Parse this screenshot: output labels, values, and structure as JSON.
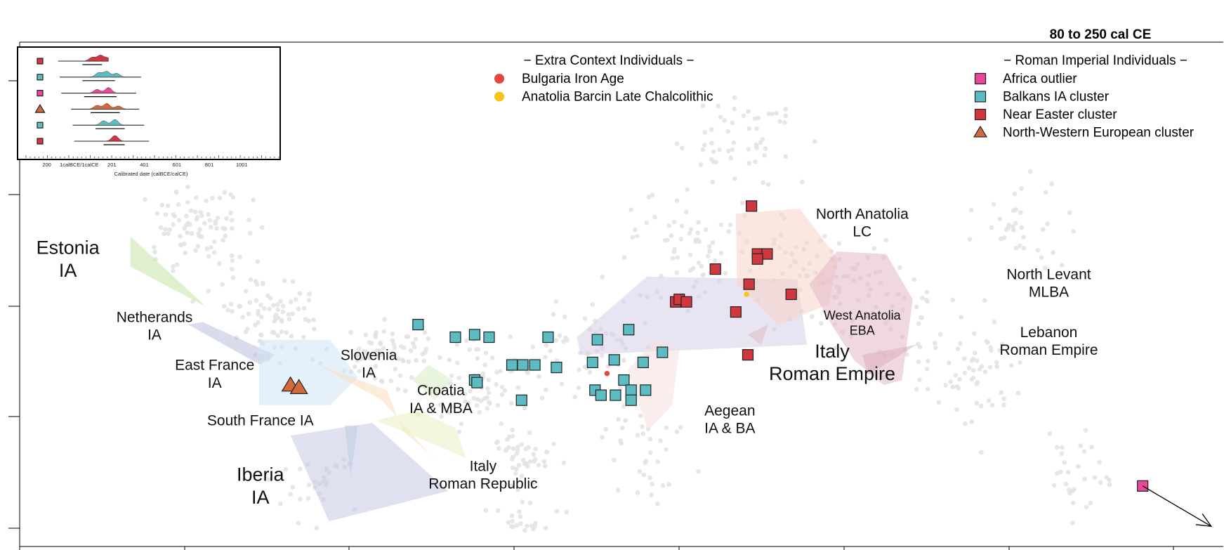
{
  "chart_data": {
    "type": "scatter",
    "title": "80 to 250 cal CE",
    "xlim": [
      0,
      1000
    ],
    "ylim": [
      0,
      100
    ],
    "background_color": "#e3e3e3",
    "legends": {
      "context": {
        "title": "Extra Context Individuals",
        "entries": [
          {
            "label": "Bulgaria Iron Age",
            "shape": "dot",
            "color": "#e8453c"
          },
          {
            "label": "Anatolia Barcin Late Chalcolithic",
            "shape": "dot",
            "color": "#f5c518"
          }
        ]
      },
      "roman": {
        "title": "Roman Imperial Individuals",
        "entries": [
          {
            "label": "Africa outlier",
            "shape": "square",
            "color": "#e8489a"
          },
          {
            "label": "Balkans IA cluster",
            "shape": "square",
            "color": "#5bbcc4"
          },
          {
            "label": "Near Easter cluster",
            "shape": "square",
            "color": "#d1373f"
          },
          {
            "label": "North-Western European cluster",
            "shape": "triangle",
            "color": "#d26a3e"
          }
        ]
      }
    },
    "regions": [
      {
        "name": "estonia",
        "color": "#c7e3a8",
        "points": [
          [
            92,
            61.5
          ],
          [
            155,
            47.5
          ],
          [
            92,
            55.5
          ]
        ]
      },
      {
        "name": "netherlands",
        "color": "#b9bfdd",
        "points": [
          [
            152,
            44.5
          ],
          [
            212,
            38
          ],
          [
            200,
            36
          ],
          [
            140,
            44
          ]
        ]
      },
      {
        "name": "east-france",
        "color": "#cfe6f6",
        "points": [
          [
            199,
            41
          ],
          [
            258,
            41
          ],
          [
            281,
            33.5
          ],
          [
            258,
            28
          ],
          [
            199,
            28
          ]
        ]
      },
      {
        "name": "south-france",
        "color": "#b0d2d8",
        "points": [
          [
            270,
            24
          ],
          [
            281,
            24
          ],
          [
            275,
            14
          ]
        ]
      },
      {
        "name": "iberia",
        "color": "#c4c8e3",
        "points": [
          [
            225,
            22
          ],
          [
            293,
            24.5
          ],
          [
            356,
            11
          ],
          [
            257,
            5
          ]
        ]
      },
      {
        "name": "slovenia-croatia",
        "color": "#fadcbc",
        "points": [
          [
            248,
            36
          ],
          [
            301,
            29
          ],
          [
            338,
            19
          ],
          [
            347,
            17
          ],
          [
            318,
            23
          ],
          [
            305,
            31
          ]
        ]
      },
      {
        "name": "croatia-green",
        "color": "#d9ecc2",
        "points": [
          [
            326,
            33
          ],
          [
            340,
            36
          ],
          [
            360,
            33
          ],
          [
            345,
            29
          ]
        ]
      },
      {
        "name": "italy-republic",
        "color": "#ebf0c2",
        "points": [
          [
            296,
            25
          ],
          [
            357,
            19
          ],
          [
            371,
            17.5
          ],
          [
            362,
            23.5
          ],
          [
            330,
            27
          ]
        ]
      },
      {
        "name": "italy-roman-empire",
        "color": "#d6cde6",
        "points": [
          [
            463,
            41.5
          ],
          [
            521,
            53.5
          ],
          [
            646,
            53
          ],
          [
            654,
            40
          ],
          [
            466,
            38
          ]
        ]
      },
      {
        "name": "aegean",
        "color": "#f6dede",
        "points": [
          [
            505,
            35
          ],
          [
            528,
            41
          ],
          [
            548,
            39
          ],
          [
            542,
            28
          ],
          [
            522,
            23
          ]
        ]
      },
      {
        "name": "north-anatolia",
        "color": "#f6d4c6",
        "points": [
          [
            595,
            66
          ],
          [
            648,
            67
          ],
          [
            680,
            57
          ],
          [
            672,
            48
          ],
          [
            630,
            44
          ],
          [
            596,
            52
          ]
        ]
      },
      {
        "name": "west-anatolia",
        "color": "#e2b8c4",
        "points": [
          [
            656,
            52
          ],
          [
            679,
            58.5
          ],
          [
            720,
            58
          ],
          [
            742,
            49
          ],
          [
            733,
            33
          ],
          [
            718,
            32
          ],
          [
            693,
            37
          ],
          [
            672,
            45
          ]
        ]
      },
      {
        "name": "lebanon",
        "color": "#dcadbd",
        "points": [
          [
            700,
            38
          ],
          [
            745,
            40
          ],
          [
            705,
            34
          ]
        ]
      },
      {
        "name": "small-triangle",
        "color": "#e2b8c4",
        "points": [
          [
            605,
            42
          ],
          [
            622,
            44
          ],
          [
            616,
            40
          ]
        ]
      }
    ],
    "region_labels": [
      {
        "lines": [
          "Estonia",
          "IA"
        ],
        "x": 40,
        "y": 58,
        "size": "large"
      },
      {
        "lines": [
          "Netherands",
          "IA"
        ],
        "x": 112,
        "y": 44.5,
        "size": "medium"
      },
      {
        "lines": [
          "East France",
          "IA"
        ],
        "x": 162,
        "y": 35,
        "size": "medium"
      },
      {
        "lines": [
          "South France IA"
        ],
        "x": 200,
        "y": 24,
        "size": "medium"
      },
      {
        "lines": [
          "Iberia",
          "IA"
        ],
        "x": 200,
        "y": 13,
        "size": "large"
      },
      {
        "lines": [
          "Slovenia",
          "IA"
        ],
        "x": 290,
        "y": 37,
        "size": "medium"
      },
      {
        "lines": [
          "Croatia",
          "IA & MBA"
        ],
        "x": 350,
        "y": 30,
        "size": "medium"
      },
      {
        "lines": [
          "Italy",
          "Roman Republic"
        ],
        "x": 385,
        "y": 15,
        "size": "medium"
      },
      {
        "lines": [
          "Aegean",
          "IA & BA"
        ],
        "x": 590,
        "y": 26,
        "size": "medium"
      },
      {
        "lines": [
          "North Anatolia",
          "LC"
        ],
        "x": 700,
        "y": 65,
        "size": "medium"
      },
      {
        "lines": [
          "West Anatolia",
          "EBA"
        ],
        "x": 700,
        "y": 45,
        "size": "small"
      },
      {
        "lines": [
          "Italy",
          "Roman Empire"
        ],
        "x": 675,
        "y": 37.5,
        "size": "large"
      },
      {
        "lines": [
          "North Levant",
          "MLBA"
        ],
        "x": 855,
        "y": 53,
        "size": "medium"
      },
      {
        "lines": [
          "Lebanon",
          "Roman Empire"
        ],
        "x": 855,
        "y": 41.5,
        "size": "medium"
      }
    ],
    "points": [
      {
        "group": "Balkans IA cluster",
        "shape": "square",
        "color": "#5bbcc4",
        "xy": [
          [
            331,
            44
          ],
          [
            362,
            41.5
          ],
          [
            378,
            42
          ],
          [
            390,
            41.5
          ],
          [
            409,
            36
          ],
          [
            418,
            36
          ],
          [
            428,
            36
          ],
          [
            439,
            41.5
          ],
          [
            446,
            35.5
          ],
          [
            480,
            41
          ],
          [
            476,
            36.5
          ],
          [
            494,
            37
          ],
          [
            518,
            36.5
          ],
          [
            506,
            43
          ],
          [
            378,
            33
          ],
          [
            380,
            32.5
          ],
          [
            417,
            29
          ],
          [
            478,
            31
          ],
          [
            483,
            30
          ],
          [
            495,
            30
          ],
          [
            502,
            33
          ],
          [
            508,
            31
          ],
          [
            508,
            29
          ],
          [
            520,
            31
          ],
          [
            534,
            38.5
          ]
        ]
      },
      {
        "group": "Near Easter cluster",
        "shape": "square",
        "color": "#d1373f",
        "xy": [
          [
            608,
            67.5
          ],
          [
            613,
            58
          ],
          [
            621,
            58
          ],
          [
            613,
            57
          ],
          [
            578,
            55
          ],
          [
            545,
            48.5
          ],
          [
            548,
            49
          ],
          [
            554,
            48.5
          ],
          [
            606,
            52
          ],
          [
            641,
            50
          ],
          [
            595,
            46.5
          ],
          [
            605,
            38
          ]
        ]
      },
      {
        "group": "North-Western European cluster",
        "shape": "triangle",
        "color": "#d26a3e",
        "xy": [
          [
            225,
            32
          ],
          [
            232,
            31.5
          ]
        ]
      },
      {
        "group": "Africa outlier",
        "shape": "square",
        "color": "#e8489a",
        "xy": [
          [
            933,
            12
          ]
        ]
      },
      {
        "group": "Bulgaria Iron Age",
        "shape": "dot",
        "color": "#e8453c",
        "xy": [
          [
            488,
            34.3
          ]
        ]
      },
      {
        "group": "Anatolia Barcin Late Chalcolithic",
        "shape": "dot",
        "color": "#f5c518",
        "xy": [
          [
            604,
            50
          ]
        ]
      }
    ],
    "arrow": {
      "from": [
        933,
        12
      ],
      "to": [
        990,
        4
      ]
    },
    "inset": {
      "xlabel": "Calibrated date (calBCE/calCE)",
      "ticks": [
        "200",
        "1calBCE/1calCE",
        "201",
        "401",
        "601",
        "801",
        "1001"
      ],
      "tick_values": [
        -200,
        0,
        201,
        401,
        601,
        801,
        1001
      ],
      "xlim": [
        -250,
        1350
      ],
      "rows": [
        {
          "shape": "square",
          "color": "#d1373f",
          "range": [
            -130,
            180
          ],
          "peaks": [
            [
              80,
              0.6
            ],
            [
              130,
              0.9
            ],
            [
              175,
              0.5
            ]
          ],
          "median_range": [
            20,
            140
          ]
        },
        {
          "shape": "square",
          "color": "#5bbcc4",
          "range": [
            -120,
            380
          ],
          "peaks": [
            [
              120,
              0.7
            ],
            [
              170,
              0.9
            ],
            [
              230,
              0.6
            ]
          ],
          "median_range": [
            20,
            220
          ]
        },
        {
          "shape": "square",
          "color": "#e8489a",
          "range": [
            -110,
            350
          ],
          "peaks": [
            [
              110,
              0.6
            ],
            [
              180,
              0.9
            ]
          ],
          "median_range": [
            30,
            230
          ]
        },
        {
          "shape": "triangle",
          "color": "#d26a3e",
          "range": [
            -50,
            370
          ],
          "peaks": [
            [
              110,
              0.6
            ],
            [
              170,
              0.9
            ],
            [
              240,
              0.5
            ]
          ],
          "median_range": [
            70,
            250
          ]
        },
        {
          "shape": "square",
          "color": "#5bbcc4",
          "range": [
            -40,
            400
          ],
          "peaks": [
            [
              150,
              0.7
            ],
            [
              220,
              0.9
            ]
          ],
          "median_range": [
            100,
            280
          ]
        },
        {
          "shape": "square",
          "color": "#d1373f",
          "range": [
            -30,
            430
          ],
          "peaks": [
            [
              220,
              0.9
            ]
          ],
          "median_range": [
            150,
            280
          ]
        }
      ]
    }
  }
}
